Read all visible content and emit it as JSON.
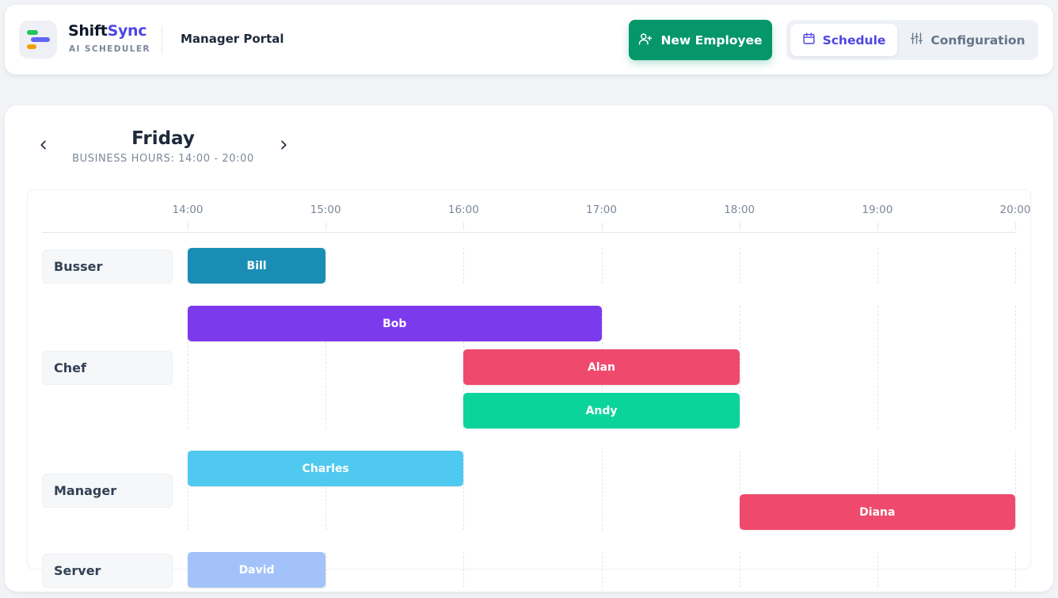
{
  "header": {
    "brand_part1": "Shift",
    "brand_part2": "Sync",
    "brand_sub": "AI SCHEDULER",
    "portal_title": "Manager Portal",
    "new_employee_label": "New Employee",
    "tabs": [
      {
        "label": "Schedule",
        "icon": "calendar-icon",
        "active": true
      },
      {
        "label": "Configuration",
        "icon": "sliders-icon",
        "active": false
      }
    ]
  },
  "schedule": {
    "day": "Friday",
    "business_hours": "BUSINESS HOURS: 14:00 - 20:00",
    "start_hour": 14,
    "end_hour": 20,
    "ticks": [
      "14:00",
      "15:00",
      "16:00",
      "17:00",
      "18:00",
      "19:00",
      "20:00"
    ],
    "roles": [
      {
        "name": "Busser",
        "shifts": [
          {
            "employee": "Bill",
            "start": 14,
            "end": 15,
            "color": "#1a8db5"
          }
        ]
      },
      {
        "name": "Chef",
        "shifts": [
          {
            "employee": "Bob",
            "start": 14,
            "end": 17,
            "color": "#7c3aed"
          },
          {
            "employee": "Alan",
            "start": 16,
            "end": 18,
            "color": "#ef4a6e"
          },
          {
            "employee": "Andy",
            "start": 16,
            "end": 18,
            "color": "#0bd49b"
          }
        ]
      },
      {
        "name": "Manager",
        "shifts": [
          {
            "employee": "Charles",
            "start": 14,
            "end": 16,
            "color": "#4fc9ef"
          },
          {
            "employee": "Diana",
            "start": 18,
            "end": 20,
            "color": "#ef4a6e"
          }
        ]
      },
      {
        "name": "Server",
        "shifts": [
          {
            "employee": "David",
            "start": 14,
            "end": 15,
            "color": "#a3c2fa"
          }
        ]
      }
    ]
  },
  "colors": {
    "accent": "#4f46e5",
    "primary_button": "#059669"
  }
}
